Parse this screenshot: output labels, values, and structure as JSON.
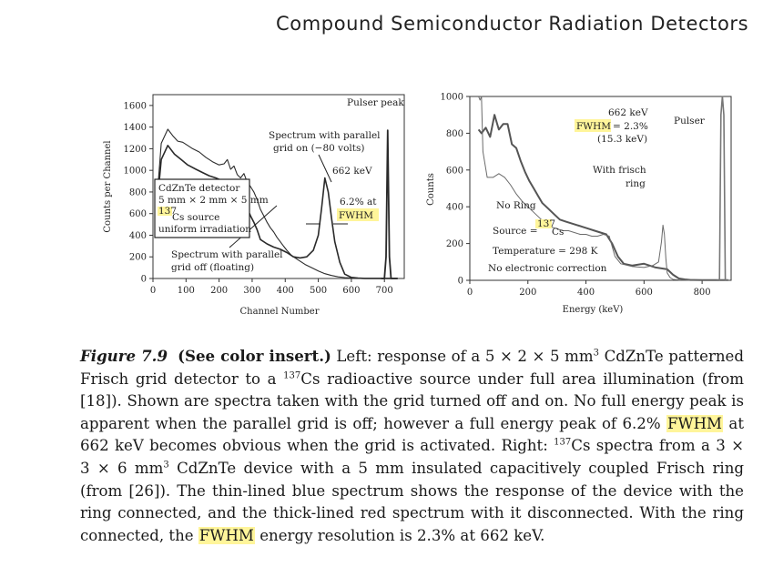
{
  "header": {
    "title": "Compound Semiconductor Radiation Detectors"
  },
  "chart_data": [
    {
      "type": "line",
      "panel": "left",
      "xlabel": "Channel Number",
      "ylabel": "Counts per Channel",
      "xlim": [
        0,
        760
      ],
      "ylim": [
        0,
        1700
      ],
      "xticks": [
        0,
        100,
        200,
        300,
        400,
        500,
        600,
        700
      ],
      "yticks": [
        0,
        200,
        400,
        600,
        800,
        1000,
        1200,
        1400,
        1600
      ],
      "series": [
        {
          "name": "Spectrum with parallel grid off (floating)",
          "x": [
            10,
            25,
            45,
            60,
            75,
            90,
            105,
            120,
            140,
            160,
            180,
            200,
            215,
            225,
            235,
            245,
            255,
            265,
            275,
            285,
            295,
            305,
            315,
            325,
            335,
            345,
            355,
            365,
            375,
            385,
            395,
            405,
            420,
            440,
            460,
            480,
            500,
            520,
            540,
            560,
            580,
            600,
            620,
            640,
            660,
            680,
            700,
            720,
            740
          ],
          "y": [
            650,
            1250,
            1380,
            1320,
            1270,
            1260,
            1230,
            1200,
            1170,
            1120,
            1080,
            1050,
            1060,
            1100,
            1010,
            1040,
            960,
            930,
            970,
            890,
            850,
            800,
            730,
            640,
            580,
            520,
            470,
            430,
            380,
            340,
            300,
            260,
            210,
            170,
            130,
            100,
            70,
            45,
            28,
            15,
            8,
            4,
            2,
            1,
            1,
            1,
            1,
            1,
            1
          ]
        },
        {
          "name": "Spectrum with parallel grid on (-80 volts)",
          "x": [
            10,
            25,
            45,
            65,
            85,
            105,
            130,
            150,
            170,
            190,
            205,
            215,
            225,
            235,
            245,
            255,
            265,
            275,
            285,
            295,
            305,
            315,
            325,
            345,
            365,
            385,
            405,
            425,
            445,
            465,
            485,
            500,
            510,
            520,
            530,
            540,
            550,
            565,
            580,
            600,
            620,
            640,
            680,
            720,
            740
          ],
          "y": [
            600,
            1100,
            1230,
            1150,
            1100,
            1050,
            1010,
            980,
            950,
            930,
            910,
            880,
            860,
            850,
            830,
            790,
            760,
            720,
            650,
            580,
            520,
            450,
            360,
            320,
            290,
            270,
            240,
            200,
            190,
            200,
            260,
            400,
            650,
            930,
            800,
            560,
            340,
            150,
            40,
            10,
            3,
            1,
            1,
            1,
            1
          ]
        },
        {
          "name": "Pulser peak",
          "x": [
            690,
            700,
            705,
            710,
            715,
            720,
            740
          ],
          "y": [
            0,
            0,
            200,
            1370,
            200,
            0,
            0
          ]
        }
      ],
      "annotations": {
        "pulser": "Pulser peak",
        "grid_on_line1": "Spectrum with parallel",
        "grid_on_line2": "grid on (−80 volts)",
        "peak_energy": "662 keV",
        "resolution_line1": "6.2% at",
        "resolution_line2": "FWHM",
        "grid_off_line1": "Spectrum with parallel",
        "grid_off_line2": "grid off (floating)"
      },
      "legend_box": {
        "line1": "CdZnTe detector",
        "line2": "5 mm × 2 mm × 5 mm",
        "line3_sup": "137",
        "line3": "Cs source",
        "line4": "uniform irradiation"
      }
    },
    {
      "type": "line",
      "panel": "right",
      "xlabel": "Energy (keV)",
      "ylabel": "Counts",
      "xlim": [
        0,
        900
      ],
      "ylim": [
        0,
        1000
      ],
      "xticks": [
        0,
        200,
        400,
        600,
        800
      ],
      "yticks": [
        0,
        200,
        400,
        600,
        800,
        1000
      ],
      "series": [
        {
          "name": "No Ring",
          "x": [
            30,
            40,
            55,
            70,
            85,
            100,
            115,
            130,
            145,
            160,
            175,
            190,
            205,
            220,
            235,
            250,
            270,
            290,
            310,
            330,
            350,
            370,
            390,
            410,
            430,
            450,
            470,
            490,
            510,
            530,
            560,
            600,
            640,
            680,
            700,
            720,
            740,
            760,
            800,
            850,
            890
          ],
          "y": [
            820,
            800,
            830,
            780,
            900,
            820,
            850,
            850,
            740,
            720,
            650,
            590,
            540,
            500,
            460,
            420,
            390,
            360,
            330,
            320,
            310,
            300,
            290,
            280,
            270,
            260,
            250,
            200,
            130,
            90,
            80,
            90,
            70,
            60,
            30,
            10,
            5,
            2,
            1,
            1,
            1
          ]
        },
        {
          "name": "With frisch ring",
          "x": [
            30,
            35,
            40,
            45,
            60,
            80,
            100,
            120,
            140,
            160,
            180,
            200,
            220,
            240,
            260,
            280,
            300,
            320,
            340,
            360,
            380,
            400,
            420,
            440,
            460,
            480,
            500,
            520,
            560,
            600,
            630,
            650,
            660,
            665,
            670,
            675,
            680,
            690,
            700,
            720,
            760,
            800,
            850,
            890
          ],
          "y": [
            1000,
            980,
            1000,
            700,
            560,
            560,
            580,
            560,
            520,
            470,
            430,
            400,
            370,
            340,
            310,
            290,
            280,
            270,
            270,
            260,
            250,
            250,
            240,
            240,
            250,
            240,
            130,
            90,
            75,
            70,
            80,
            100,
            210,
            300,
            250,
            120,
            40,
            15,
            5,
            2,
            1,
            1,
            1,
            1
          ]
        },
        {
          "name": "Pulser",
          "x": [
            850,
            860,
            865,
            870,
            875,
            880,
            890
          ],
          "y": [
            0,
            0,
            900,
            1000,
            900,
            0,
            0
          ]
        }
      ],
      "annotations": {
        "peak_energy": "662 keV",
        "fwhm_label": "FWHM",
        "fwhm_value": "= 2.3%",
        "fwhm_kev": "(15.3 keV)",
        "pulser": "Pulser",
        "frisch_line1": "With frisch",
        "frisch_line2": "ring",
        "no_ring": "No Ring",
        "source_prefix": "Source =",
        "source_sup": "137",
        "source_elem": "Cs",
        "temperature": "Temperature = 298 K",
        "correction": "No electronic correction"
      }
    }
  ],
  "caption": {
    "label": "Figure 7.9",
    "see_insert": "(See color insert.)",
    "t1": " Left: response of a 5 × 2 × 5 mm",
    "sup_3a": "3",
    "t2": " CdZnTe patterned Frisch grid detector to a ",
    "sup_137a": "137",
    "t3": "Cs radioactive source under full area illumination (from [18]). Shown are spectra taken with the grid turned off and on. No full energy peak is apparent when the parallel grid is off; however a full energy peak of 6.2% ",
    "fwhm1": "FWHM",
    "t4": " at 662 keV becomes obvious when the grid is activated. Right: ",
    "sup_137b": "137",
    "t5": "Cs spectra from a 3 × 3 × 6 mm",
    "sup_3b": "3",
    "t6": " CdZnTe device with a 5 mm insulated capacitively coupled Frisch ring (from [26]). The thin-lined blue spectrum shows the response of the device with the ring connected, and the thick-lined red spectrum with it disconnected. With the ring connected, the ",
    "fwhm2": "FWHM",
    "t7": " energy resolution is 2.3% at 662 keV."
  }
}
